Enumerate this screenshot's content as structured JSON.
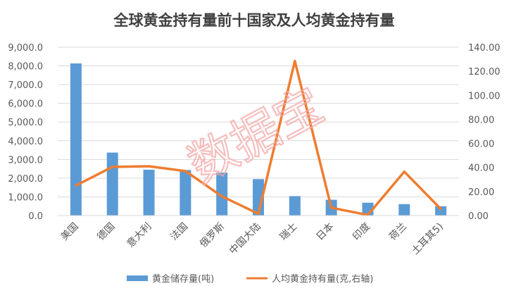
{
  "chart_data": {
    "type": "bar",
    "title": "全球黄金持有量前十国家及人均黄金持有量",
    "categories": [
      "美国",
      "德国",
      "意大利",
      "法国",
      "俄罗斯",
      "中国大陆",
      "瑞士",
      "日本",
      "印度",
      "荷兰",
      "土耳其5)"
    ],
    "series": [
      {
        "name": "黄金储存量(吨)",
        "type": "bar",
        "axis": "left",
        "values": [
          8133.5,
          3367.0,
          2451.8,
          2436.0,
          2299.0,
          1948.3,
          1040.0,
          846.0,
          687.8,
          612.5,
          500.0
        ]
      },
      {
        "name": "人均黄金持有量(克,右轴)",
        "type": "line",
        "axis": "right",
        "values": [
          25.0,
          40.5,
          41.0,
          37.0,
          16.0,
          1.5,
          128.5,
          6.5,
          0.5,
          36.5,
          5.5
        ]
      }
    ],
    "y_left": {
      "min": 0,
      "max": 9000,
      "step": 1000,
      "tick_labels": [
        "0.0",
        "1,000.0",
        "2,000.0",
        "3,000.0",
        "4,000.0",
        "5,000.0",
        "6,000.0",
        "7,000.0",
        "8,000.0",
        "9,000.0"
      ]
    },
    "y_right": {
      "min": 0,
      "max": 140,
      "step": 20,
      "tick_labels": [
        "0.00",
        "20.00",
        "40.00",
        "60.00",
        "80.00",
        "100.00",
        "120.00",
        "140.00"
      ]
    },
    "grid": true,
    "legend_position": "bottom",
    "colors": {
      "bar": "#5b9bd5",
      "line": "#ed7d31",
      "grid": "#d9d9d9",
      "text": "#595959",
      "title": "#404040"
    },
    "watermark": "数据宝"
  }
}
